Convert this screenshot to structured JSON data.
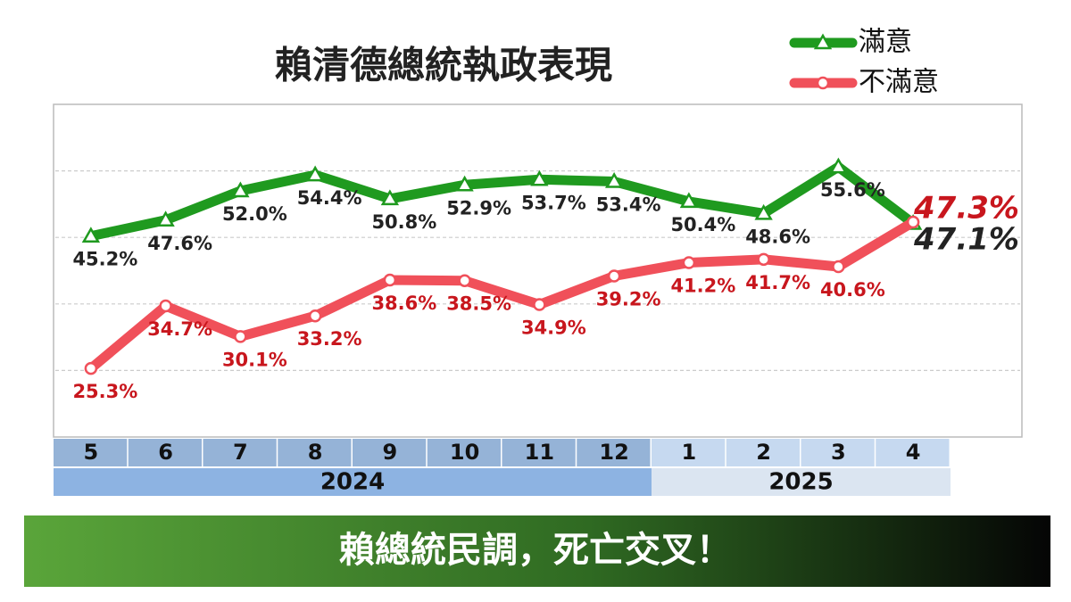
{
  "chart_data": {
    "type": "line",
    "title": "賴清德總統執政表現",
    "categories": [
      "5",
      "6",
      "7",
      "8",
      "9",
      "10",
      "11",
      "12",
      "1",
      "2",
      "3",
      "4"
    ],
    "years": [
      "2024",
      "2025"
    ],
    "ylim": [
      15,
      65
    ],
    "yticks": [
      25,
      35,
      45,
      55
    ],
    "grid": true,
    "legend": "top-right",
    "series": [
      {
        "name": "滿意",
        "color": "#1f9a1f",
        "marker": "triangle",
        "values": [
          45.2,
          47.6,
          52.0,
          54.4,
          50.8,
          52.9,
          53.7,
          53.4,
          50.4,
          48.6,
          55.6,
          47.1
        ],
        "value_labels": [
          "45.2%",
          "47.6%",
          "52.0%",
          "54.4%",
          "50.8%",
          "52.9%",
          "53.7%",
          "53.4%",
          "50.4%",
          "48.6%",
          "55.6%",
          "47.1%"
        ],
        "label_color": "#222222"
      },
      {
        "name": "不滿意",
        "color": "#f0505a",
        "marker": "circle",
        "values": [
          25.3,
          34.7,
          30.1,
          33.2,
          38.6,
          38.5,
          34.9,
          39.2,
          41.2,
          41.7,
          40.6,
          47.3
        ],
        "value_labels": [
          "25.3%",
          "34.7%",
          "30.1%",
          "33.2%",
          "38.6%",
          "38.5%",
          "34.9%",
          "39.2%",
          "41.2%",
          "41.7%",
          "40.6%",
          "47.3%"
        ],
        "label_color": "#c8161d"
      }
    ],
    "banner": "賴總統民調，死亡交叉！"
  }
}
